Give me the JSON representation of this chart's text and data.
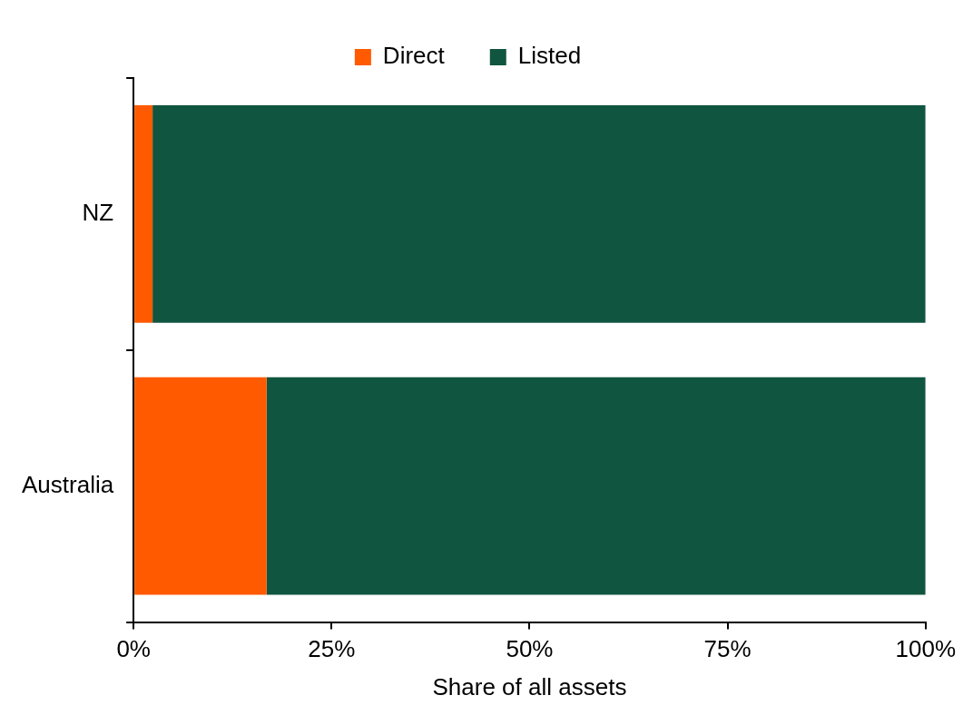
{
  "chart_data": {
    "type": "bar",
    "orientation": "horizontal",
    "stacked": true,
    "categories": [
      "NZ",
      "Australia"
    ],
    "series": [
      {
        "name": "Direct",
        "color": "#ff5a00",
        "values": [
          2.4,
          16.8
        ]
      },
      {
        "name": "Listed",
        "color": "#10553f",
        "values": [
          97.6,
          83.2
        ]
      }
    ],
    "xlabel": "Share of all assets",
    "xlim": [
      0,
      100
    ],
    "xticks": [
      {
        "value": 0,
        "label": "0%"
      },
      {
        "value": 25,
        "label": "25%"
      },
      {
        "value": 50,
        "label": "50%"
      },
      {
        "value": 75,
        "label": "75%"
      },
      {
        "value": 100,
        "label": "100%"
      }
    ],
    "grid": false,
    "legend": "top"
  }
}
